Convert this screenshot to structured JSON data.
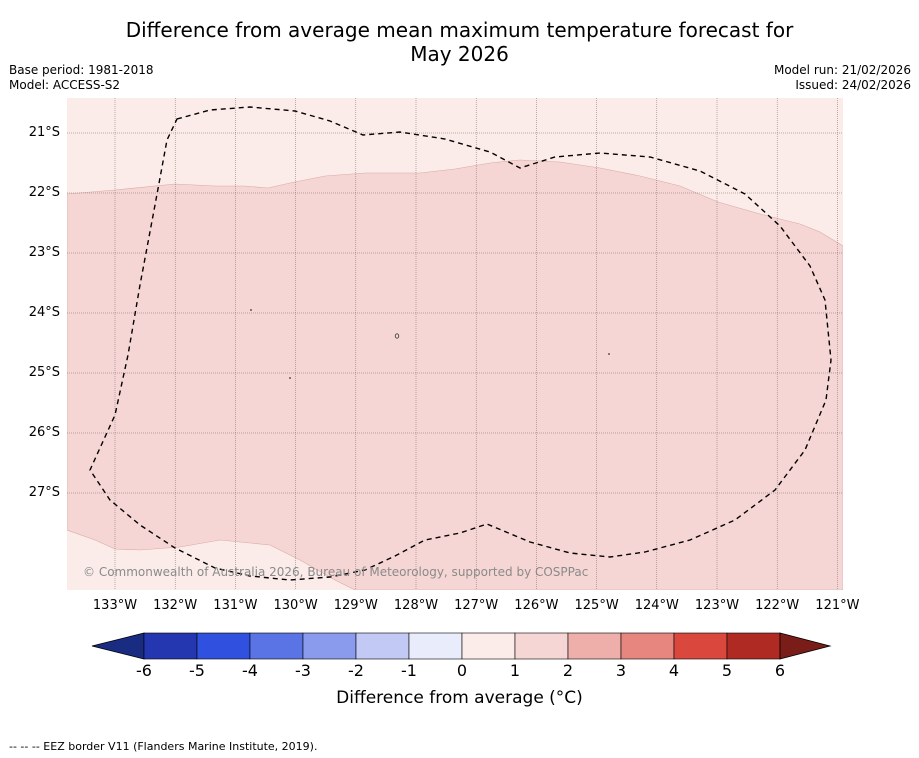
{
  "header": {
    "title_line1": "Difference from average mean maximum temperature forecast for",
    "title_line2": "May 2026",
    "base_period": "Base period: 1981-2018",
    "model": "Model: ACCESS-S2",
    "model_run": "Model run: 21/02/2026",
    "issued": "Issued: 24/02/2026"
  },
  "map": {
    "lat_labels": [
      "21°S",
      "22°S",
      "23°S",
      "24°S",
      "25°S",
      "26°S",
      "27°S"
    ],
    "lon_labels": [
      "133°W",
      "132°W",
      "131°W",
      "130°W",
      "129°W",
      "128°W",
      "127°W",
      "126°W",
      "125°W",
      "124°W",
      "123°W",
      "122°W",
      "121°W"
    ],
    "copyright": "© Commonwealth of Australia 2026, Bureau of Meteorology, supported by COSPPac",
    "colors": {
      "class_0_1": "#fbece9",
      "class_1_2": "#f5d6d4"
    }
  },
  "colorbar": {
    "ticks": [
      "-6",
      "-5",
      "-4",
      "-3",
      "-2",
      "-1",
      "0",
      "1",
      "2",
      "3",
      "4",
      "5",
      "6"
    ],
    "colors": [
      "#1a2b82",
      "#2437b0",
      "#3050e0",
      "#5a74e6",
      "#8a9bed",
      "#c3c9f5",
      "#e9ecfb",
      "#fbece9",
      "#f5d6d4",
      "#eeaea9",
      "#e7857f",
      "#da473c",
      "#b02a24",
      "#7a1c18"
    ],
    "label": "Difference from average (°C)"
  },
  "footer": {
    "legend": "-- -- -- EEZ border V11 (Flanders Marine Institute, 2019)."
  }
}
